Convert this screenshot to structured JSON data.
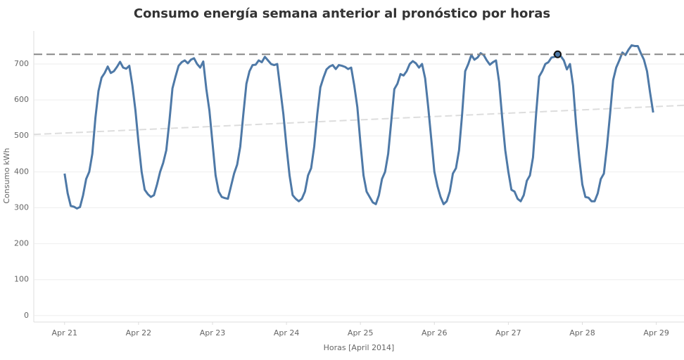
{
  "chart_data": {
    "type": "line",
    "title": "Consumo energía semana anterior al pronóstico por horas",
    "x_label": "Horas [April 2014]",
    "y_label": "Consumo kWh",
    "xlim": [
      -10,
      201
    ],
    "ylim": [
      -18,
      792
    ],
    "xticks": [
      {
        "value": 0,
        "label": "Apr 21"
      },
      {
        "value": 24,
        "label": "Apr 22"
      },
      {
        "value": 48,
        "label": "Apr 23"
      },
      {
        "value": 72,
        "label": "Apr 24"
      },
      {
        "value": 96,
        "label": "Apr 25"
      },
      {
        "value": 120,
        "label": "Apr 26"
      },
      {
        "value": 144,
        "label": "Apr 27"
      },
      {
        "value": 168,
        "label": "Apr 28"
      },
      {
        "value": 192,
        "label": "Apr 29"
      }
    ],
    "yticks": [
      0,
      100,
      200,
      300,
      400,
      500,
      600,
      700
    ],
    "grid": true,
    "x": [
      0,
      1,
      2,
      3,
      4,
      5,
      6,
      7,
      8,
      9,
      10,
      11,
      12,
      13,
      14,
      15,
      16,
      17,
      18,
      19,
      20,
      21,
      22,
      23,
      24,
      25,
      26,
      27,
      28,
      29,
      30,
      31,
      32,
      33,
      34,
      35,
      36,
      37,
      38,
      39,
      40,
      41,
      42,
      43,
      44,
      45,
      46,
      47,
      48,
      49,
      50,
      51,
      52,
      53,
      54,
      55,
      56,
      57,
      58,
      59,
      60,
      61,
      62,
      63,
      64,
      65,
      66,
      67,
      68,
      69,
      70,
      71,
      72,
      73,
      74,
      75,
      76,
      77,
      78,
      79,
      80,
      81,
      82,
      83,
      84,
      85,
      86,
      87,
      88,
      89,
      90,
      91,
      92,
      93,
      94,
      95,
      96,
      97,
      98,
      99,
      100,
      101,
      102,
      103,
      104,
      105,
      106,
      107,
      108,
      109,
      110,
      111,
      112,
      113,
      114,
      115,
      116,
      117,
      118,
      119,
      120,
      121,
      122,
      123,
      124,
      125,
      126,
      127,
      128,
      129,
      130,
      131,
      132,
      133,
      134,
      135,
      136,
      137,
      138,
      139,
      140,
      141,
      142,
      143,
      144,
      145,
      146,
      147,
      148,
      149,
      150,
      151,
      152,
      153,
      154,
      155,
      156,
      157,
      158,
      159,
      160,
      161,
      162,
      163,
      164,
      165,
      166,
      167,
      168,
      169,
      170,
      171,
      172,
      173,
      174,
      175,
      176,
      177,
      178,
      179,
      180,
      181,
      182,
      183,
      184,
      185,
      186,
      187,
      188,
      189,
      190,
      191
    ],
    "series": [
      {
        "color": "#4e79a7",
        "values": [
          395,
          340,
          305,
          303,
          298,
          302,
          335,
          380,
          400,
          450,
          550,
          625,
          662,
          675,
          693,
          675,
          680,
          692,
          706,
          690,
          687,
          695,
          640,
          570,
          480,
          400,
          350,
          338,
          330,
          335,
          365,
          400,
          425,
          460,
          540,
          632,
          665,
          695,
          705,
          710,
          702,
          712,
          716,
          700,
          690,
          707,
          630,
          570,
          480,
          390,
          345,
          330,
          327,
          325,
          360,
          395,
          420,
          470,
          560,
          645,
          680,
          697,
          698,
          710,
          705,
          720,
          710,
          700,
          697,
          700,
          630,
          560,
          470,
          390,
          335,
          325,
          318,
          325,
          345,
          390,
          410,
          470,
          560,
          635,
          662,
          685,
          693,
          697,
          686,
          697,
          695,
          692,
          686,
          690,
          640,
          580,
          480,
          390,
          345,
          330,
          315,
          310,
          335,
          380,
          400,
          450,
          540,
          630,
          645,
          672,
          668,
          680,
          700,
          708,
          702,
          690,
          700,
          660,
          580,
          490,
          400,
          360,
          330,
          310,
          318,
          345,
          395,
          410,
          460,
          560,
          680,
          700,
          725,
          712,
          718,
          730,
          725,
          710,
          698,
          705,
          710,
          650,
          550,
          460,
          400,
          350,
          345,
          325,
          318,
          335,
          375,
          390,
          440,
          560,
          665,
          680,
          700,
          705,
          718,
          720,
          727,
          722,
          710,
          685,
          700,
          640,
          530,
          440,
          365,
          330,
          328,
          318,
          318,
          340,
          380,
          395,
          470,
          560,
          655,
          690,
          710,
          732,
          725,
          740,
          752,
          750,
          750,
          730,
          712,
          680,
          620,
          565
        ]
      }
    ],
    "reference_line": 727,
    "trend_line": {
      "x": [
        -10,
        201
      ],
      "values": [
        504,
        585
      ]
    },
    "highlight": {
      "x": 160,
      "value": 727
    }
  }
}
